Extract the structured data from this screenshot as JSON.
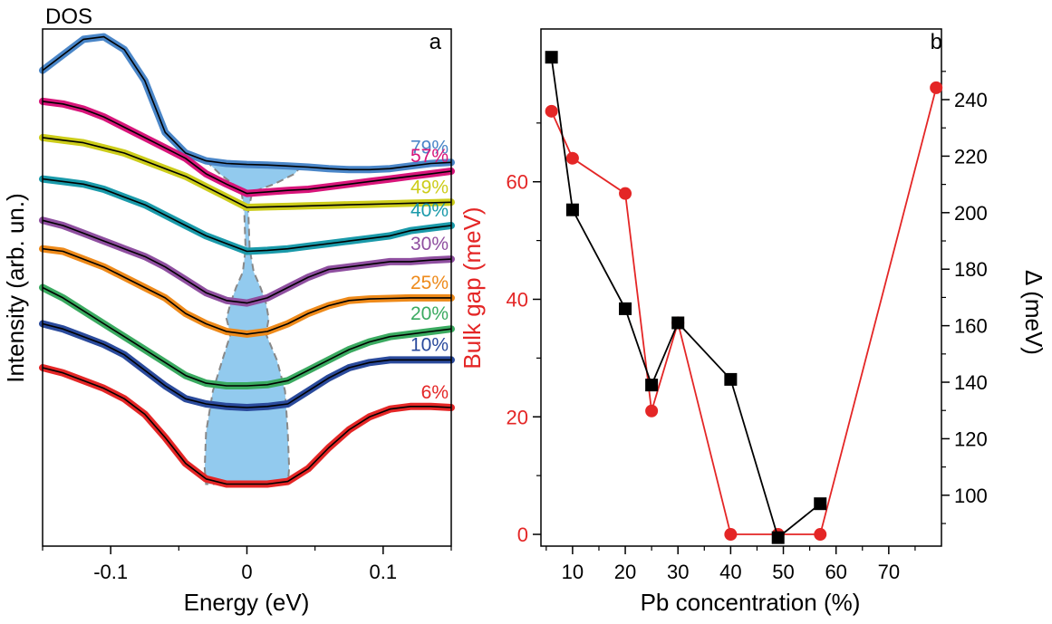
{
  "chart_data": [
    {
      "panel": "a",
      "type": "line",
      "title": "DOS",
      "xlabel": "Energy (eV)",
      "ylabel": "Intensity (arb. un.)",
      "xlim": [
        -0.15,
        0.15
      ],
      "xticks": [
        -0.1,
        0,
        0.1
      ],
      "xtick_labels": [
        "-0.1",
        "0",
        "0.1"
      ],
      "y_tick_labels": "none",
      "grid": false,
      "series": [
        {
          "name": "79%",
          "color": "#4a86c8",
          "x": [
            -0.15,
            -0.135,
            -0.12,
            -0.105,
            -0.09,
            -0.075,
            -0.06,
            -0.045,
            -0.03,
            -0.015,
            0,
            0.015,
            0.03,
            0.045,
            0.06,
            0.075,
            0.09,
            0.105,
            0.12,
            0.135,
            0.15
          ],
          "y": [
            0.92,
            0.95,
            0.98,
            0.985,
            0.96,
            0.9,
            0.8,
            0.76,
            0.745,
            0.74,
            0.738,
            0.737,
            0.735,
            0.733,
            0.73,
            0.728,
            0.728,
            0.73,
            0.735,
            0.74,
            0.742
          ]
        },
        {
          "name": "57%",
          "color": "#d8157a",
          "x": [
            -0.15,
            -0.135,
            -0.12,
            -0.105,
            -0.09,
            -0.075,
            -0.06,
            -0.045,
            -0.03,
            -0.015,
            0,
            0.015,
            0.03,
            0.045,
            0.06,
            0.075,
            0.09,
            0.105,
            0.12,
            0.135,
            0.15
          ],
          "y": [
            0.86,
            0.855,
            0.845,
            0.83,
            0.81,
            0.79,
            0.77,
            0.75,
            0.72,
            0.7,
            0.682,
            0.685,
            0.688,
            0.69,
            0.695,
            0.7,
            0.705,
            0.71,
            0.715,
            0.72,
            0.725
          ]
        },
        {
          "name": "49%",
          "color": "#cccc1a",
          "x": [
            -0.15,
            -0.135,
            -0.12,
            -0.105,
            -0.09,
            -0.075,
            -0.06,
            -0.045,
            -0.03,
            -0.015,
            0,
            0.015,
            0.03,
            0.045,
            0.06,
            0.075,
            0.09,
            0.105,
            0.12,
            0.135,
            0.15
          ],
          "y": [
            0.79,
            0.785,
            0.78,
            0.77,
            0.76,
            0.745,
            0.73,
            0.715,
            0.695,
            0.675,
            0.655,
            0.656,
            0.657,
            0.658,
            0.659,
            0.66,
            0.661,
            0.662,
            0.663,
            0.664,
            0.665
          ]
        },
        {
          "name": "40%",
          "color": "#1a9aaa",
          "x": [
            -0.15,
            -0.135,
            -0.12,
            -0.105,
            -0.09,
            -0.075,
            -0.06,
            -0.045,
            -0.03,
            -0.015,
            0,
            0.015,
            0.03,
            0.045,
            0.06,
            0.075,
            0.09,
            0.105,
            0.12,
            0.135,
            0.15
          ],
          "y": [
            0.71,
            0.705,
            0.7,
            0.69,
            0.675,
            0.66,
            0.64,
            0.62,
            0.6,
            0.585,
            0.57,
            0.572,
            0.575,
            0.58,
            0.585,
            0.59,
            0.595,
            0.6,
            0.61,
            0.615,
            0.62
          ]
        },
        {
          "name": "30%",
          "color": "#8f4fa0",
          "x": [
            -0.15,
            -0.135,
            -0.12,
            -0.105,
            -0.09,
            -0.075,
            -0.06,
            -0.045,
            -0.03,
            -0.015,
            0,
            0.015,
            0.03,
            0.045,
            0.06,
            0.075,
            0.09,
            0.105,
            0.12,
            0.135,
            0.15
          ],
          "y": [
            0.63,
            0.62,
            0.605,
            0.59,
            0.575,
            0.56,
            0.54,
            0.515,
            0.49,
            0.475,
            0.47,
            0.48,
            0.5,
            0.52,
            0.535,
            0.54,
            0.545,
            0.55,
            0.55,
            0.553,
            0.555
          ]
        },
        {
          "name": "25%",
          "color": "#ee8a1a",
          "x": [
            -0.15,
            -0.135,
            -0.12,
            -0.105,
            -0.09,
            -0.075,
            -0.06,
            -0.045,
            -0.03,
            -0.015,
            0,
            0.015,
            0.03,
            0.045,
            0.06,
            0.075,
            0.09,
            0.105,
            0.12,
            0.135,
            0.15
          ],
          "y": [
            0.575,
            0.57,
            0.555,
            0.54,
            0.52,
            0.5,
            0.48,
            0.45,
            0.43,
            0.415,
            0.41,
            0.415,
            0.43,
            0.45,
            0.465,
            0.475,
            0.478,
            0.479,
            0.48,
            0.48,
            0.48
          ]
        },
        {
          "name": "20%",
          "color": "#3aaa60",
          "x": [
            -0.15,
            -0.135,
            -0.12,
            -0.105,
            -0.09,
            -0.075,
            -0.06,
            -0.045,
            -0.03,
            -0.015,
            0,
            0.015,
            0.03,
            0.045,
            0.06,
            0.075,
            0.09,
            0.105,
            0.12,
            0.135,
            0.15
          ],
          "y": [
            0.5,
            0.48,
            0.455,
            0.43,
            0.405,
            0.38,
            0.355,
            0.33,
            0.315,
            0.31,
            0.31,
            0.312,
            0.32,
            0.34,
            0.36,
            0.38,
            0.395,
            0.405,
            0.41,
            0.415,
            0.42
          ]
        },
        {
          "name": "10%",
          "color": "#2a4a9c",
          "x": [
            -0.15,
            -0.135,
            -0.12,
            -0.105,
            -0.09,
            -0.075,
            -0.06,
            -0.045,
            -0.03,
            -0.015,
            0,
            0.015,
            0.03,
            0.045,
            0.06,
            0.075,
            0.09,
            0.105,
            0.12,
            0.135,
            0.15
          ],
          "y": [
            0.43,
            0.42,
            0.405,
            0.39,
            0.37,
            0.34,
            0.31,
            0.285,
            0.275,
            0.27,
            0.268,
            0.27,
            0.275,
            0.3,
            0.325,
            0.345,
            0.355,
            0.36,
            0.36,
            0.36,
            0.36
          ]
        },
        {
          "name": "6%",
          "color": "#e42626",
          "x": [
            -0.15,
            -0.135,
            -0.12,
            -0.105,
            -0.09,
            -0.075,
            -0.06,
            -0.045,
            -0.03,
            -0.015,
            0,
            0.015,
            0.03,
            0.045,
            0.06,
            0.075,
            0.09,
            0.105,
            0.12,
            0.135,
            0.15
          ],
          "y": [
            0.345,
            0.335,
            0.32,
            0.305,
            0.285,
            0.255,
            0.21,
            0.16,
            0.13,
            0.12,
            0.12,
            0.12,
            0.125,
            0.15,
            0.19,
            0.225,
            0.25,
            0.265,
            0.27,
            0.27,
            0.268
          ]
        }
      ],
      "shaded_gap_region": {
        "color": "#86c4ec",
        "boundary_left": [
          [
            -0.03,
            0.745
          ],
          [
            -0.02,
            0.72
          ],
          [
            -0.01,
            0.7
          ],
          [
            -0.004,
            0.685
          ],
          [
            -0.002,
            0.65
          ],
          [
            -0.001,
            0.575
          ],
          [
            -0.003,
            0.53
          ],
          [
            -0.008,
            0.5
          ],
          [
            -0.012,
            0.47
          ],
          [
            -0.015,
            0.44
          ],
          [
            -0.012,
            0.41
          ],
          [
            -0.018,
            0.36
          ],
          [
            -0.025,
            0.3
          ],
          [
            -0.03,
            0.22
          ],
          [
            -0.031,
            0.15
          ],
          [
            -0.03,
            0.12
          ]
        ],
        "boundary_right": [
          [
            0.03,
            0.12
          ],
          [
            0.031,
            0.15
          ],
          [
            0.03,
            0.22
          ],
          [
            0.028,
            0.3
          ],
          [
            0.022,
            0.36
          ],
          [
            0.014,
            0.41
          ],
          [
            0.016,
            0.44
          ],
          [
            0.014,
            0.47
          ],
          [
            0.01,
            0.5
          ],
          [
            0.005,
            0.53
          ],
          [
            0.002,
            0.575
          ],
          [
            0.001,
            0.65
          ],
          [
            0.004,
            0.685
          ],
          [
            0.02,
            0.7
          ],
          [
            0.035,
            0.72
          ],
          [
            0.04,
            0.735
          ]
        ]
      }
    },
    {
      "panel": "b",
      "type": "scatter",
      "xlabel": "Pb concentration (%)",
      "ylabel": "Bulk gap (meV)",
      "ylabel_right": "Δ (meV)",
      "xlim": [
        4,
        80
      ],
      "ylim": [
        -2,
        86
      ],
      "ylim_right": [
        82,
        265
      ],
      "xticks": [
        10,
        20,
        30,
        40,
        50,
        60,
        70
      ],
      "yticks": [
        0,
        20,
        40,
        60
      ],
      "yticks_right": [
        100,
        120,
        140,
        160,
        180,
        200,
        220,
        240
      ],
      "grid": false,
      "series": [
        {
          "axis": "left",
          "color": "#e42626",
          "marker": "circle",
          "x": [
            6,
            10,
            20,
            25,
            30,
            40,
            49,
            57,
            79
          ],
          "y": [
            72,
            64,
            58,
            21,
            36,
            0,
            0,
            0,
            76
          ]
        },
        {
          "axis": "right",
          "color": "#000000",
          "marker": "square",
          "x": [
            6,
            10,
            20,
            25,
            30,
            40,
            49,
            57
          ],
          "y": [
            255,
            201,
            166,
            139,
            161,
            141,
            85,
            97
          ]
        }
      ]
    }
  ]
}
